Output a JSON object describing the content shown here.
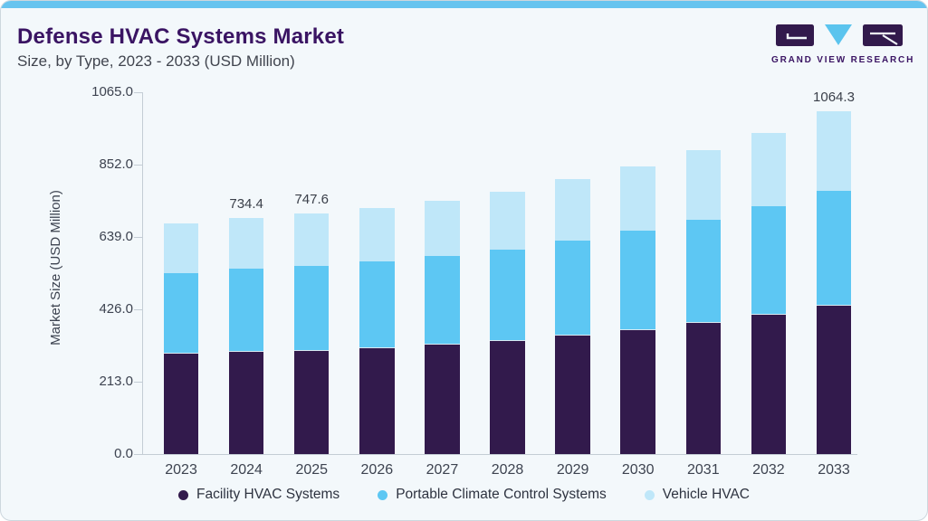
{
  "header": {
    "title": "Defense HVAC Systems Market",
    "subtitle": "Size, by Type, 2023 - 2033 (USD Million)",
    "brand": "GRAND VIEW RESEARCH"
  },
  "chart_data": {
    "type": "bar",
    "stacked": true,
    "title": "Defense HVAC Systems Market Size, by Type, 2023 - 2033 (USD Million)",
    "xlabel": "",
    "ylabel": "Market Size (USD Million)",
    "categories": [
      2023,
      2024,
      2025,
      2026,
      2027,
      2028,
      2029,
      2030,
      2031,
      2032,
      2033
    ],
    "series": [
      {
        "name": "Facility HVAC Systems",
        "color": "#321a4c",
        "values": [
          316.0,
          320.0,
          324.0,
          331.0,
          342.0,
          355.0,
          370.0,
          388.0,
          410.0,
          435.0,
          464.3
        ]
      },
      {
        "name": "Portable Climate Control Systems",
        "color": "#5dc7f3",
        "values": [
          247.0,
          256.0,
          260.5,
          269.0,
          274.0,
          280.0,
          292.0,
          306.0,
          318.0,
          336.0,
          353.0
        ]
      },
      {
        "name": "Vehicle HVAC",
        "color": "#bfe7f9",
        "values": [
          153.2,
          158.4,
          163.1,
          164.0,
          170.0,
          179.0,
          192.0,
          200.0,
          216.0,
          227.0,
          247.0
        ]
      }
    ],
    "totals": [
      716.2,
      734.4,
      747.6,
      764.0,
      786.0,
      814.0,
      854.0,
      894.0,
      944.0,
      998.0,
      1064.3
    ],
    "bar_labels": {
      "2024": "734.4",
      "2025": "747.6",
      "2033": "1064.3"
    },
    "y_ticks": [
      "1065.0",
      "852.0",
      "639.0",
      "426.0",
      "213.0",
      "0.0"
    ],
    "ylim": [
      0,
      1065
    ],
    "grid": false,
    "legend_position": "bottom"
  }
}
